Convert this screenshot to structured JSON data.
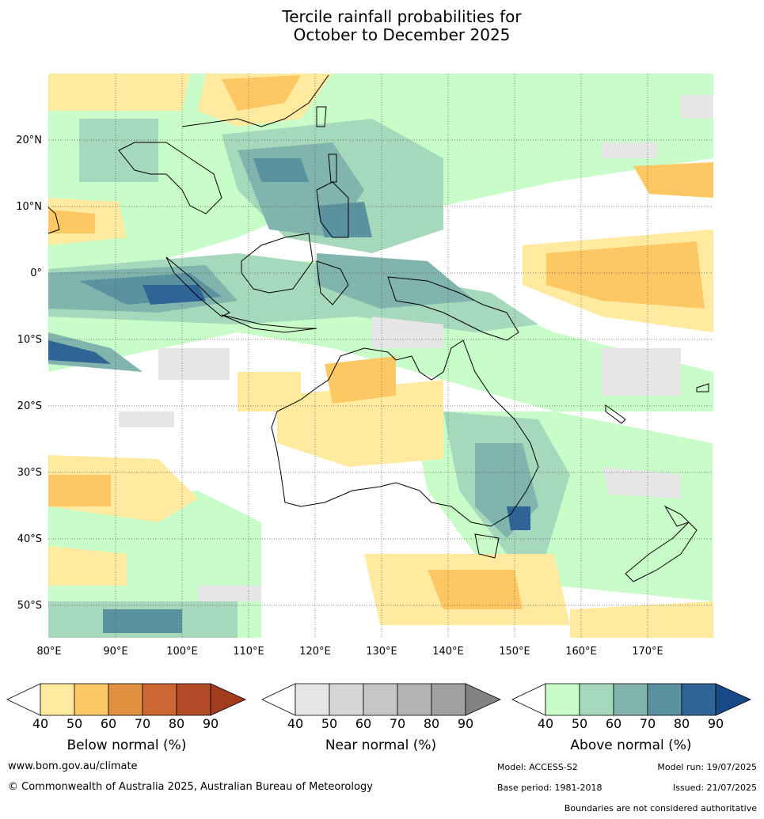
{
  "title_line1": "Tercile rainfall probabilities for",
  "title_line2": "October to December 2025",
  "map": {
    "lon_labels": [
      "80°E",
      "90°E",
      "100°E",
      "110°E",
      "120°E",
      "130°E",
      "140°E",
      "150°E",
      "160°E",
      "170°E"
    ],
    "lat_labels": [
      "20°N",
      "10°N",
      "0°",
      "10°S",
      "20°S",
      "30°S",
      "40°S",
      "50°S"
    ]
  },
  "legends": {
    "below": {
      "title": "Below normal (%)",
      "ticks": [
        "40",
        "50",
        "60",
        "70",
        "80",
        "90"
      ],
      "colors": [
        "#ffffff",
        "#ffeaa0",
        "#fdc863",
        "#e0903f",
        "#cc6633",
        "#b34a28",
        "#a33b1e"
      ]
    },
    "near": {
      "title": "Near normal (%)",
      "ticks": [
        "40",
        "50",
        "60",
        "70",
        "80",
        "90"
      ],
      "colors": [
        "#ffffff",
        "#e6e6e6",
        "#d6d6d6",
        "#c6c6c6",
        "#b4b4b4",
        "#a0a0a0",
        "#828282"
      ]
    },
    "above": {
      "title": "Above normal (%)",
      "ticks": [
        "40",
        "50",
        "60",
        "70",
        "80",
        "90"
      ],
      "colors": [
        "#ffffff",
        "#c8fcc8",
        "#a6d8bc",
        "#80b4ac",
        "#5a92a0",
        "#2e6496",
        "#184a88"
      ]
    }
  },
  "footer": {
    "website": "www.bom.gov.au/climate",
    "copyright": "© Commonwealth of Australia 2025, Australian Bureau of Meteorology",
    "model": "Model: ACCESS-S2",
    "model_run": "Model run: 19/07/2025",
    "base_period": "Base period: 1981-2018",
    "issued": "Issued: 21/07/2025",
    "disclaimer": "Boundaries are not considered authoritative"
  }
}
